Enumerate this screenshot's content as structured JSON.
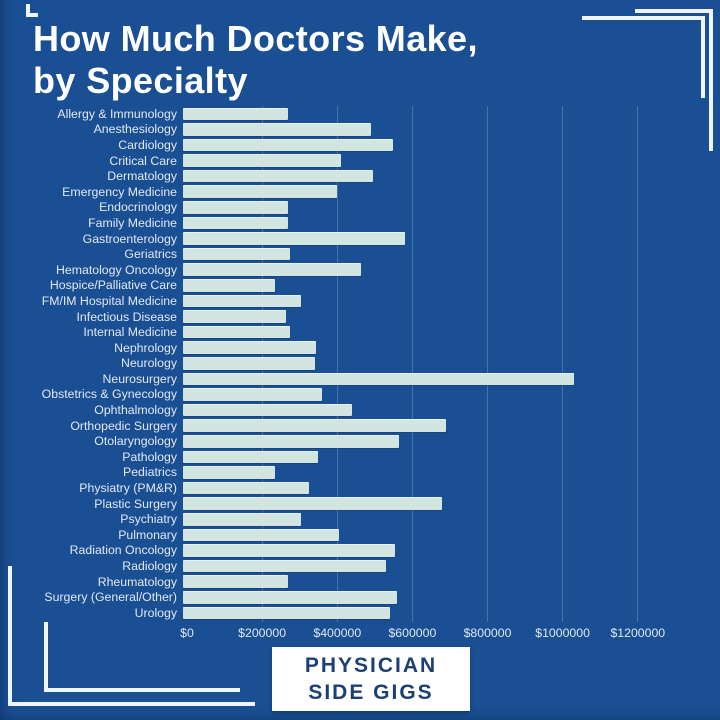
{
  "header": {
    "title_lines": [
      "How Much Doctors Make,",
      "by Specialty"
    ]
  },
  "brand": {
    "line1": "PHYSICIAN",
    "line2": "SIDE GIGS"
  },
  "colors": {
    "background": "#1a4f93",
    "bar_fill": "#d3e5e1",
    "label_text": "#e3e8f6",
    "title_text": "#ffffff",
    "badge_background": "#ffffff",
    "badge_text": "#1c3f75",
    "gridline": "rgba(225,240,250,0.22)"
  },
  "chart_data": {
    "type": "bar",
    "orientation": "horizontal",
    "title": "How Much Doctors Make, by Specialty",
    "xlabel": "",
    "ylabel": "",
    "xlim": [
      0,
      1260000
    ],
    "grid": true,
    "x_ticks": [
      0,
      200000,
      400000,
      600000,
      800000,
      1000000,
      1200000
    ],
    "x_tick_labels": [
      "$0",
      "$200000",
      "$400000",
      "$600000",
      "$800000",
      "$1000000",
      "$1200000"
    ],
    "categories": [
      "Allergy & Immunology",
      "Anesthesiology",
      "Cardiology",
      "Critical Care",
      "Dermatology",
      "Emergency Medicine",
      "Endocrinology",
      "Family Medicine",
      "Gastroenterology",
      "Geriatrics",
      "Hematology Oncology",
      "Hospice/Palliative Care",
      "FM/IM Hospital Medicine",
      "Infectious Disease",
      "Internal Medicine",
      "Nephrology",
      "Neurology",
      "Neurosurgery",
      "Obstetrics & Gynecology",
      "Ophthalmology",
      "Orthopedic Surgery",
      "Otolaryngology",
      "Pathology",
      "Pediatrics",
      "Physiatry (PM&R)",
      "Plastic Surgery",
      "Psychiatry",
      "Pulmonary",
      "Radiation Oncology",
      "Radiology",
      "Rheumatology",
      "Surgery (General/Other)",
      "Urology"
    ],
    "values": [
      280000,
      500000,
      560000,
      420000,
      505000,
      410000,
      280000,
      280000,
      590000,
      285000,
      475000,
      245000,
      315000,
      275000,
      285000,
      355000,
      350000,
      1040000,
      370000,
      450000,
      700000,
      575000,
      360000,
      245000,
      335000,
      690000,
      315000,
      415000,
      565000,
      540000,
      280000,
      570000,
      550000
    ]
  }
}
